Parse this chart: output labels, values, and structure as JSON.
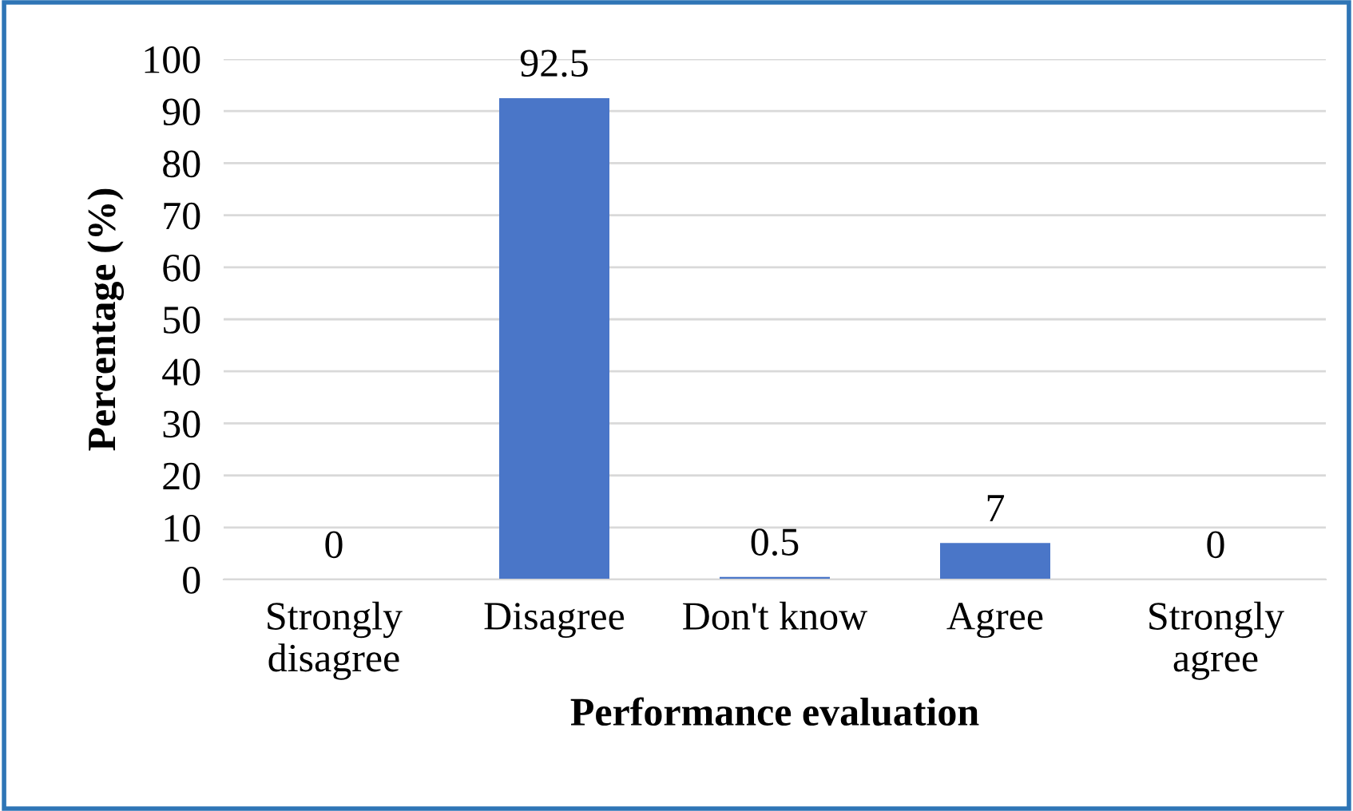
{
  "chart_data": {
    "type": "bar",
    "categories": [
      "Strongly\ndisagree",
      "Disagree",
      "Don't know",
      "Agree",
      "Strongly\nagree"
    ],
    "values": [
      0,
      92.5,
      0.5,
      7,
      0
    ],
    "color": "#4a76c8",
    "xlabel": "Performance evaluation",
    "ylabel": "Percentage (%)",
    "ylim": [
      0,
      100
    ],
    "yticks": [
      0,
      10,
      20,
      30,
      40,
      50,
      60,
      70,
      80,
      90,
      100
    ],
    "grid": "y",
    "data_labels": true,
    "legend": false
  }
}
